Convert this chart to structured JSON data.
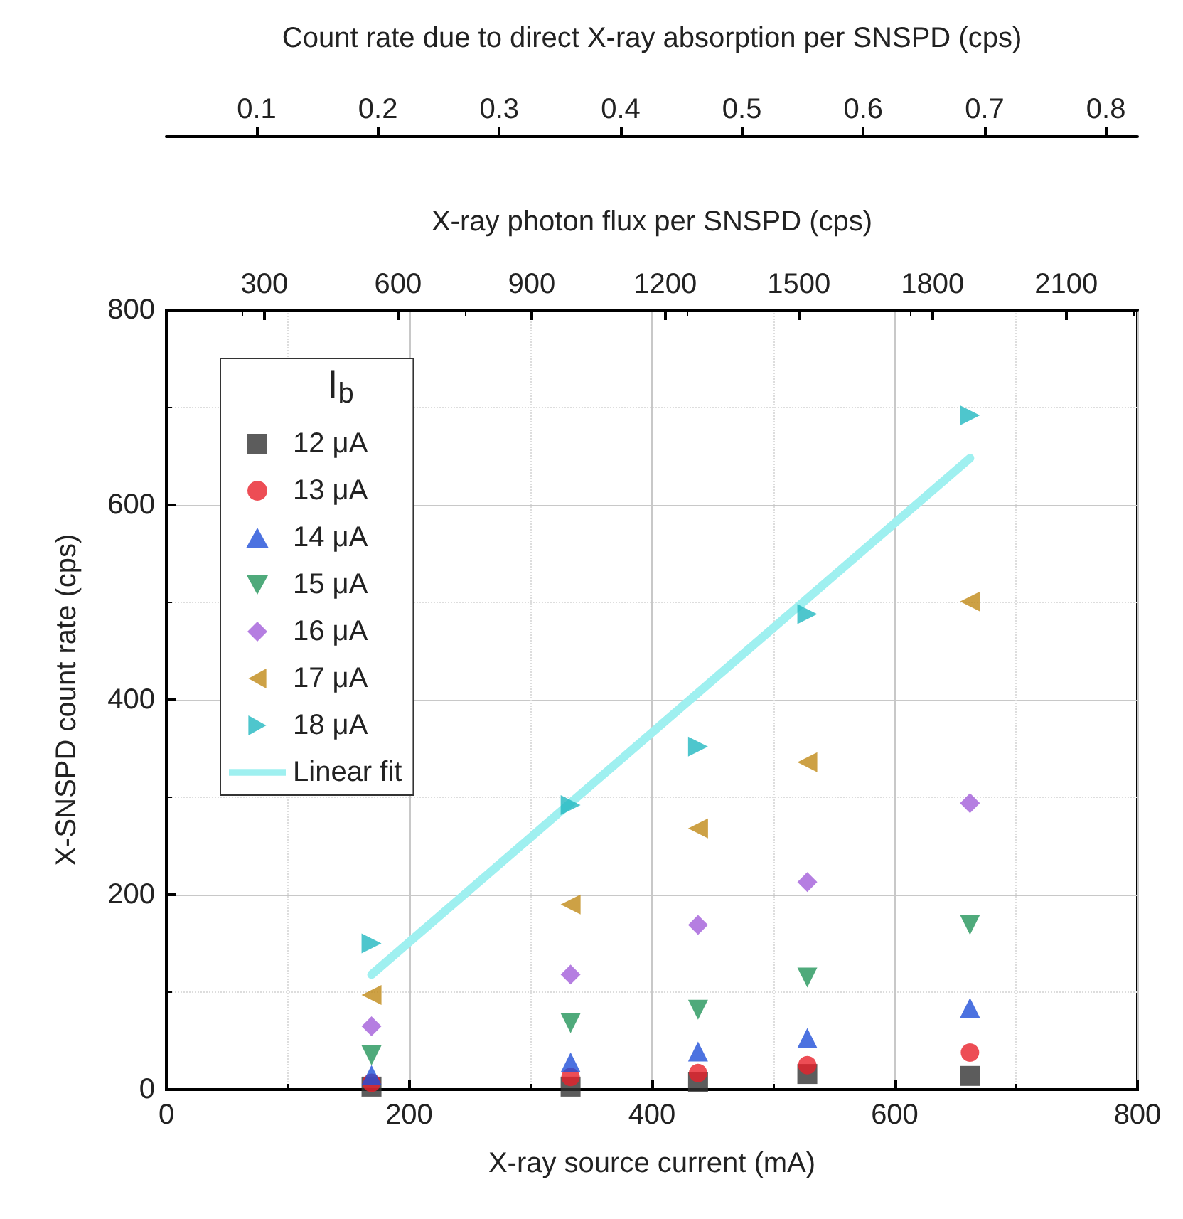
{
  "chart_data": {
    "type": "scatter",
    "xlabel": "X-ray source current (mA)",
    "ylabel": "X-SNSPD count rate (cps)",
    "x2label": "X-ray photon flux per SNSPD (cps)",
    "xlim": [
      0,
      800
    ],
    "xticks": [
      0,
      200,
      400,
      600,
      800
    ],
    "ylim": [
      0,
      800
    ],
    "yticks": [
      0,
      200,
      400,
      600,
      800
    ],
    "x2lim": [
      80,
      2260
    ],
    "x2ticks": [
      300,
      600,
      900,
      1200,
      1500,
      1800,
      2100
    ],
    "grid": true,
    "legend": "top left",
    "legend_title": "I$_{b}$",
    "annotations": [
      "Count rate due to direct X-ray absorption per SNSPD (cps)",
      "0.1",
      "0.2",
      "0.3",
      "0.4",
      "0.5",
      "0.6",
      "0.7",
      "0.8"
    ],
    "x": [
      169,
      333,
      438,
      528,
      662
    ],
    "series": [
      {
        "name": "12 μA",
        "color": "#333333",
        "marker": "square",
        "values": [
          3,
          3,
          8,
          16,
          14
        ]
      },
      {
        "name": "13 μA",
        "color": "#e8202a",
        "marker": "circle",
        "values": [
          7,
          13,
          17,
          25,
          38
        ]
      },
      {
        "name": "14 μA",
        "color": "#1f4fd8",
        "marker": "triangle",
        "values": [
          15,
          28,
          39,
          53,
          84
        ]
      },
      {
        "name": "15 μA",
        "color": "#23955a",
        "marker": "triangle-down",
        "values": [
          35,
          68,
          82,
          115,
          169
        ]
      },
      {
        "name": "16 μA",
        "color": "#a35ed9",
        "marker": "diamond",
        "values": [
          65,
          118,
          169,
          213,
          294
        ]
      },
      {
        "name": "17 μA",
        "color": "#c08a17",
        "marker": "triangle-left",
        "values": [
          97,
          190,
          268,
          336,
          501
        ]
      },
      {
        "name": "18 μA",
        "color": "#22b8c0",
        "marker": "triangle-right",
        "values": [
          150,
          292,
          352,
          488,
          692
        ]
      },
      {
        "name": "Linear fit",
        "type": "line",
        "color": "#9ff0f0",
        "marker": "none",
        "line_style": "solid",
        "x": [
          169,
          662
        ],
        "values": [
          118,
          648
        ]
      }
    ]
  }
}
